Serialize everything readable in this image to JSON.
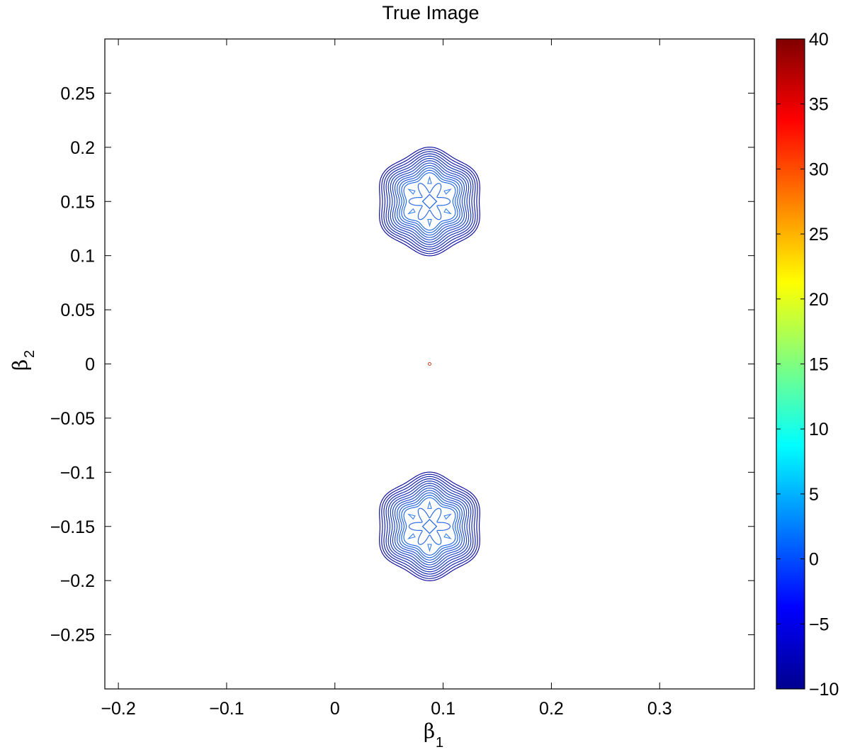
{
  "chart_data": {
    "type": "contour",
    "title": "True Image",
    "xlabel": "β",
    "xlabel_sub": "1",
    "ylabel": "β",
    "ylabel_sub": "2",
    "xlim": [
      -0.2125,
      0.3875
    ],
    "ylim": [
      -0.3,
      0.3
    ],
    "xticks": [
      -0.2,
      -0.1,
      0,
      0.1,
      0.2,
      0.3
    ],
    "xtick_labels": [
      "−0.2",
      "−0.1",
      "0",
      "0.1",
      "0.2",
      "0.3"
    ],
    "yticks": [
      0.25,
      0.2,
      0.15,
      0.1,
      0.05,
      0,
      -0.05,
      -0.1,
      -0.15,
      -0.2,
      -0.25
    ],
    "ytick_labels": [
      "0.25",
      "0.2",
      "0.15",
      "0.1",
      "0.05",
      "0",
      "−0.05",
      "−0.1",
      "−0.15",
      "−0.2",
      "−0.25"
    ],
    "colormap": "jet",
    "colorbar": {
      "range": [
        -10,
        40
      ],
      "ticks": [
        40,
        35,
        30,
        25,
        20,
        15,
        10,
        5,
        0,
        -5,
        -10
      ],
      "tick_labels": [
        "40",
        "35",
        "30",
        "25",
        "20",
        "15",
        "10",
        "5",
        "0",
        "−5",
        "−10"
      ]
    },
    "grid": false,
    "blobs": [
      {
        "center": [
          0.0875,
          0.15
        ],
        "outer_radius": 0.048,
        "inner_radius": 0.024,
        "levels": 12,
        "lobes": 6
      },
      {
        "center": [
          0.0875,
          -0.15
        ],
        "outer_radius": 0.048,
        "inner_radius": 0.024,
        "levels": 12,
        "lobes": 6
      }
    ],
    "center_spot": [
      0.0875,
      0.0
    ]
  }
}
